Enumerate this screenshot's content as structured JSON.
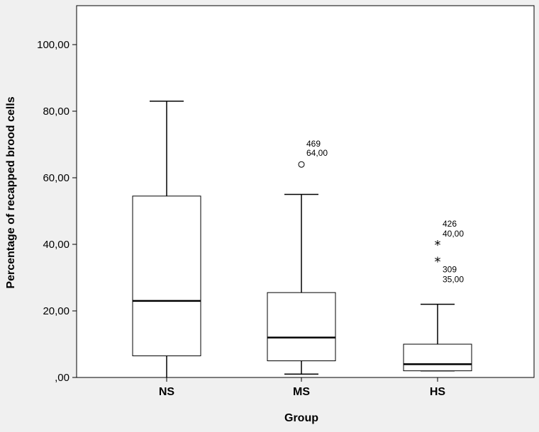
{
  "chart_data": {
    "type": "boxplot",
    "title": "",
    "xlabel": "Group",
    "ylabel": "Percentage of recapped brood cells",
    "ylim": [
      0,
      110
    ],
    "y_ticks": [
      {
        "value": 0,
        "label": ",00"
      },
      {
        "value": 20,
        "label": "20,00"
      },
      {
        "value": 40,
        "label": "40,00"
      },
      {
        "value": 60,
        "label": "60,00"
      },
      {
        "value": 80,
        "label": "80,00"
      },
      {
        "value": 100,
        "label": "100,00"
      }
    ],
    "grid": false,
    "categories": [
      "NS",
      "MS",
      "HS"
    ],
    "boxes": [
      {
        "category": "NS",
        "whisker_low": 0,
        "q1": 6.5,
        "median": 23,
        "q3": 54.5,
        "whisker_high": 83,
        "outliers": []
      },
      {
        "category": "MS",
        "whisker_low": 1,
        "q1": 5,
        "median": 12,
        "q3": 25.5,
        "whisker_high": 55,
        "outliers": [
          {
            "value": 64,
            "marker": "circle",
            "case": "469",
            "value_label": "64,00"
          }
        ]
      },
      {
        "category": "HS",
        "whisker_low": 2,
        "q1": 2,
        "median": 4,
        "q3": 10,
        "whisker_high": 22,
        "outliers": [
          {
            "value": 40,
            "marker": "star",
            "case": "426",
            "value_label": "40,00"
          },
          {
            "value": 35,
            "marker": "star",
            "case": "309",
            "value_label": "35,00"
          }
        ]
      }
    ]
  },
  "colors": {
    "background": "#f0f0f0",
    "plot_area": "#ffffff",
    "stroke": "#000000"
  }
}
